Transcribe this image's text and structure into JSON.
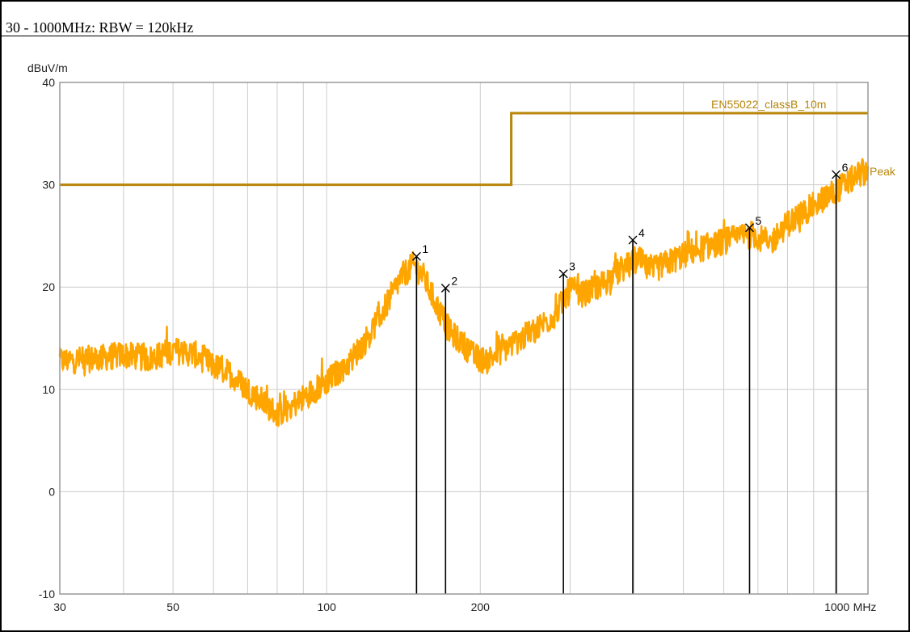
{
  "caption": "30 - 1000MHz: RBW = 120kHz",
  "chart_data": {
    "type": "line",
    "x_scale": "log",
    "xlim": [
      30,
      1150
    ],
    "ylim": [
      -10,
      40
    ],
    "ylabel": "dBuV/m",
    "x_unit": "MHz",
    "grid": true,
    "x_ticks": [
      {
        "value": 30,
        "label": "30"
      },
      {
        "value": 50,
        "label": "50"
      },
      {
        "value": 100,
        "label": "100"
      },
      {
        "value": 200,
        "label": "200"
      },
      {
        "value": 1000,
        "label": "1000"
      }
    ],
    "y_ticks": [
      {
        "value": 40,
        "label": "40"
      },
      {
        "value": 30,
        "label": "30"
      },
      {
        "value": 20,
        "label": "20"
      },
      {
        "value": 10,
        "label": "10"
      },
      {
        "value": 0,
        "label": "0"
      },
      {
        "value": -10,
        "label": "-10"
      }
    ],
    "limit_line": {
      "name": "EN55022_classB_10m",
      "color": "#b8860b",
      "points": [
        [
          30,
          30
        ],
        [
          230,
          30
        ],
        [
          230,
          37
        ],
        [
          1150,
          37
        ]
      ]
    },
    "peak_trace": {
      "name": "Peak",
      "color": "#ffa500",
      "points": [
        [
          30,
          12.8
        ],
        [
          35,
          13.0
        ],
        [
          40,
          13.4
        ],
        [
          45,
          13.0
        ],
        [
          50,
          13.8
        ],
        [
          55,
          13.5
        ],
        [
          60,
          12.3
        ],
        [
          65,
          11.5
        ],
        [
          70,
          10.0
        ],
        [
          75,
          8.8
        ],
        [
          80,
          7.6
        ],
        [
          85,
          8.3
        ],
        [
          90,
          9.2
        ],
        [
          100,
          10.8
        ],
        [
          110,
          12.5
        ],
        [
          120,
          15.0
        ],
        [
          130,
          18.0
        ],
        [
          140,
          21.0
        ],
        [
          148,
          22.2
        ],
        [
          155,
          21.0
        ],
        [
          165,
          18.0
        ],
        [
          175,
          15.5
        ],
        [
          185,
          14.5
        ],
        [
          195,
          13.2
        ],
        [
          205,
          12.8
        ],
        [
          220,
          13.8
        ],
        [
          250,
          15.5
        ],
        [
          280,
          17.3
        ],
        [
          300,
          19.8
        ],
        [
          320,
          19.3
        ],
        [
          350,
          20.5
        ],
        [
          380,
          21.8
        ],
        [
          410,
          22.7
        ],
        [
          430,
          21.5
        ],
        [
          470,
          22.5
        ],
        [
          520,
          23.5
        ],
        [
          600,
          24.5
        ],
        [
          680,
          25.2
        ],
        [
          740,
          24.3
        ],
        [
          800,
          26.2
        ],
        [
          900,
          28.0
        ],
        [
          1000,
          29.5
        ],
        [
          1100,
          31.0
        ],
        [
          1150,
          31.5
        ]
      ]
    },
    "markers": [
      {
        "label": "1",
        "x": 150,
        "y": 23.0
      },
      {
        "label": "2",
        "x": 171,
        "y": 19.9
      },
      {
        "label": "3",
        "x": 291,
        "y": 21.3
      },
      {
        "label": "4",
        "x": 398,
        "y": 24.6
      },
      {
        "label": "5",
        "x": 674,
        "y": 25.8
      },
      {
        "label": "6",
        "x": 996,
        "y": 31.0
      }
    ]
  }
}
